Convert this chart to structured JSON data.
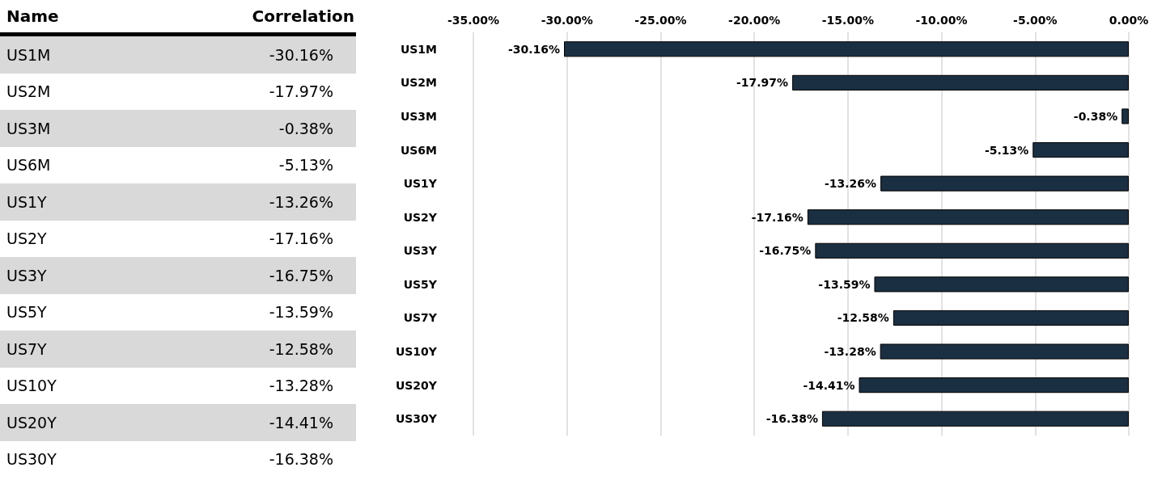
{
  "chart_data": {
    "type": "bar",
    "orientation": "horizontal",
    "annotations": [
      "Name",
      "Correlation"
    ],
    "categories": [
      "US1M",
      "US2M",
      "US3M",
      "US6M",
      "US1Y",
      "US2Y",
      "US3Y",
      "US5Y",
      "US7Y",
      "US10Y",
      "US20Y",
      "US30Y"
    ],
    "values": [
      -30.16,
      -17.97,
      -0.38,
      -5.13,
      -13.26,
      -17.16,
      -16.75,
      -13.59,
      -12.58,
      -13.28,
      -14.41,
      -16.38
    ],
    "value_labels": [
      "-30.16%",
      "-17.97%",
      "-0.38%",
      "-5.13%",
      "-13.26%",
      "-17.16%",
      "-16.75%",
      "-13.59%",
      "-12.58%",
      "-13.28%",
      "-14.41%",
      "-16.38%"
    ],
    "color": "#1b2f42",
    "xlim": [
      -35,
      0
    ],
    "xticks": [
      {
        "value": -35,
        "label": "-35.00%"
      },
      {
        "value": -30,
        "label": "-30.00%"
      },
      {
        "value": -25,
        "label": "-25.00%"
      },
      {
        "value": -20,
        "label": "-20.00%"
      },
      {
        "value": -15,
        "label": "-15.00%"
      },
      {
        "value": -10,
        "label": "-10.00%"
      },
      {
        "value": -5,
        "label": "-5.00%"
      },
      {
        "value": 0,
        "label": "0.00%"
      }
    ],
    "grid": "x"
  }
}
